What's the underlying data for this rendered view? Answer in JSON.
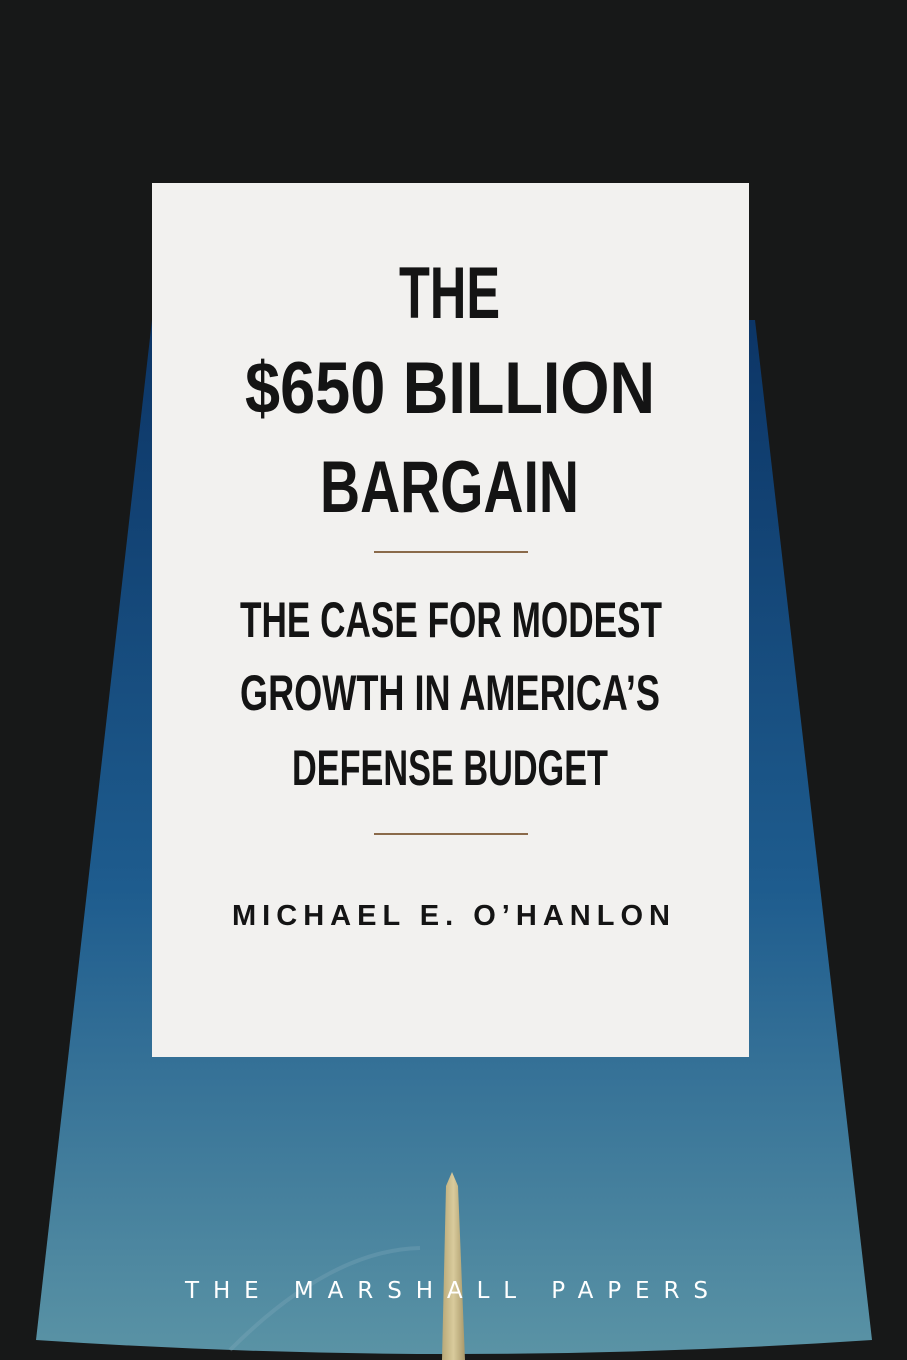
{
  "cover": {
    "title_lines": [
      "THE",
      "$650 BILLION",
      "BARGAIN"
    ],
    "subtitle_lines": [
      "THE CASE FOR MODEST",
      "GROWTH IN AMERICA’S",
      "DEFENSE BUDGET"
    ],
    "author": "MICHAEL E. O’HANLON",
    "series": "THE MARSHALL PAPERS"
  },
  "colors": {
    "background": "#171818",
    "sky_top": "#0f3a6a",
    "sky_bottom": "#4f8aa0",
    "panel": "#f2f1ef",
    "text": "#141414",
    "rule": "#8a6a4a",
    "monument": "#cbbb8c"
  }
}
